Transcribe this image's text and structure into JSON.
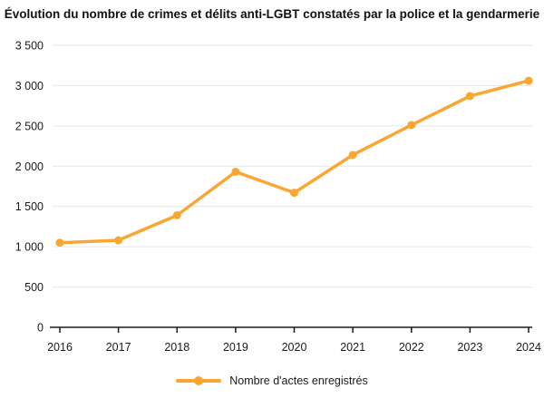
{
  "chart_data": {
    "type": "line",
    "title": "Évolution du nombre de crimes et délits anti-LGBT constatés par la police et la gendarmerie",
    "categories": [
      "2016",
      "2017",
      "2018",
      "2019",
      "2020",
      "2021",
      "2022",
      "2023",
      "2024"
    ],
    "series": [
      {
        "name": "Nombre d'actes enregistrés",
        "values": [
          1050,
          1080,
          1390,
          1930,
          1670,
          2140,
          2510,
          2870,
          3060
        ],
        "color": "#F9A632"
      }
    ],
    "xlabel": "",
    "ylabel": "",
    "ylim": [
      0,
      3500
    ],
    "y_ticks": [
      3500,
      3000,
      2500,
      2000,
      1500,
      1000,
      500,
      0
    ],
    "y_tick_labels": [
      "3 500",
      "3 000",
      "2 500",
      "2 000",
      "1 500",
      "1 000",
      "500",
      "0"
    ],
    "grid": "horizontal",
    "legend_position": "bottom"
  },
  "legend": {
    "label": "Nombre d'actes enregistrés"
  },
  "colors": {
    "line": "#F9A632",
    "grid": "#e6e6e6",
    "axis": "#1a1a1a",
    "text": "#1a1a1a",
    "title": "#111111",
    "background": "#ffffff"
  }
}
